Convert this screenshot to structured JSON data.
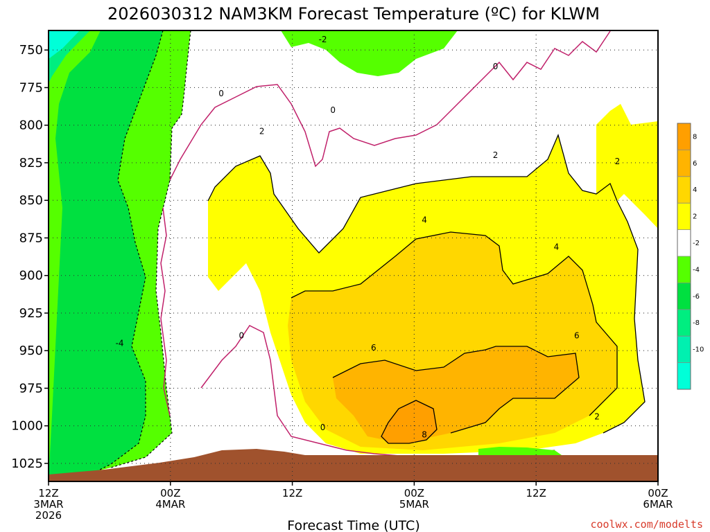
{
  "chart_data": {
    "type": "heatmap",
    "title": "2026030312 NAM3KM Forecast Temperature (ºC) for KLWM",
    "xlabel": "Forecast Time (UTC)",
    "ylabel": "",
    "x_range_hours": [
      0,
      60
    ],
    "y_range_hpa": [
      737,
      1037
    ],
    "y_ticks": [
      750,
      775,
      800,
      825,
      850,
      875,
      900,
      925,
      950,
      975,
      1000,
      1025
    ],
    "x_ticks": [
      {
        "hour": 0,
        "lines": [
          "12Z",
          "3MAR",
          "2026"
        ]
      },
      {
        "hour": 12,
        "lines": [
          "00Z",
          "4MAR"
        ]
      },
      {
        "hour": 24,
        "lines": [
          "12Z"
        ]
      },
      {
        "hour": 36,
        "lines": [
          "00Z",
          "5MAR"
        ]
      },
      {
        "hour": 48,
        "lines": [
          "12Z"
        ]
      },
      {
        "hour": 60,
        "lines": [
          "00Z",
          "6MAR"
        ]
      }
    ],
    "colorbar": {
      "ticks": [
        "8",
        "6",
        "4",
        "2",
        "-2",
        "-4",
        "-6",
        "-8",
        "-10"
      ],
      "bands": [
        {
          "range": "8 to 10",
          "color": "#ff9f00"
        },
        {
          "range": "6 to 8",
          "color": "#ffb400"
        },
        {
          "range": "4 to 6",
          "color": "#ffd700"
        },
        {
          "range": "2 to 4",
          "color": "#ffff00"
        },
        {
          "range": "-2 to 2",
          "color": "#ffffff"
        },
        {
          "range": "-4 to -2",
          "color": "#55ff00"
        },
        {
          "range": "-6 to -4",
          "color": "#00e040"
        },
        {
          "range": "-8 to -6",
          "color": "#00ee80"
        },
        {
          "range": "-10 to -8",
          "color": "#00f0b0"
        },
        {
          "range": "< -10",
          "color": "#00ffd8"
        }
      ]
    },
    "contour_labels": [
      {
        "text": "-2",
        "hour": 27,
        "hpa": 743
      },
      {
        "text": "0",
        "hour": 44,
        "hpa": 761
      },
      {
        "text": "0",
        "hour": 17,
        "hpa": 779
      },
      {
        "text": "0",
        "hour": 28,
        "hpa": 790
      },
      {
        "text": "2",
        "hour": 21,
        "hpa": 804
      },
      {
        "text": "2",
        "hour": 44,
        "hpa": 820
      },
      {
        "text": "2",
        "hour": 56,
        "hpa": 824
      },
      {
        "text": "4",
        "hour": 37,
        "hpa": 863
      },
      {
        "text": "4",
        "hour": 50,
        "hpa": 881
      },
      {
        "text": "0",
        "hour": 19,
        "hpa": 940
      },
      {
        "text": "-4",
        "hour": 7,
        "hpa": 945
      },
      {
        "text": "6",
        "hour": 32,
        "hpa": 948
      },
      {
        "text": "6",
        "hour": 52,
        "hpa": 940
      },
      {
        "text": "2",
        "hour": 54,
        "hpa": 994
      },
      {
        "text": "0",
        "hour": 27,
        "hpa": 1001
      },
      {
        "text": "8",
        "hour": 37,
        "hpa": 1006
      }
    ],
    "ground_color": "#a0522d",
    "credit": "coolwx.com/modelts"
  }
}
